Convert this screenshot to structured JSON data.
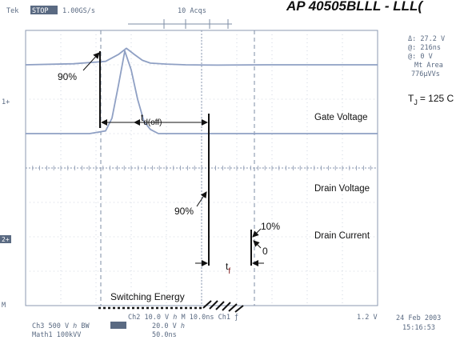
{
  "chart_data": {
    "type": "line",
    "title": "",
    "part_number_fragment": "AP 40505BLLL - LLL(",
    "temperature_label": "T",
    "temperature_subscript": "J",
    "temperature_value": "= 125 C",
    "header": {
      "brand": "Tek",
      "mode": "STOP",
      "sample_rate": "1.00GS/s",
      "acquisitions": "10 Acqs"
    },
    "cursor_readout": [
      "Δ: 27.2 V",
      "@: 216ns",
      "@: 0 V",
      "Mt Area",
      "776µVVs"
    ],
    "ch1_marker": "1+",
    "ch2_marker": "2+",
    "mth_marker": "M",
    "footer": {
      "left_lines": [
        "Ch3   500 V  ℎ  BW",
        "Math1   100kVV"
      ],
      "middle_lines": [
        "Ch2   10.0 V  ℎ  M 10.0ns  Ch1  ƒ",
        "20.0 V  ℎ",
        "50.0ns"
      ],
      "trigger": "1.2 V",
      "date": "24 Feb 2003",
      "time": "15:16:53"
    },
    "series": [
      {
        "name": "Gate Voltage",
        "x": [
          0,
          28,
          48,
          60,
          80,
          100,
          116,
          124,
          132,
          140,
          150,
          160,
          200,
          280,
          440
        ],
        "y": [
          6.43,
          6.4,
          6.22,
          6.0,
          5.84,
          5.8,
          5.72,
          5.55,
          5.62,
          5.42,
          5.36,
          5.3,
          5.26,
          5.2,
          5.18
        ]
      },
      {
        "name": "Drain Voltage",
        "x": [
          0,
          60,
          100,
          116,
          126,
          136,
          146,
          156,
          176,
          200,
          240,
          300,
          440
        ],
        "y": [
          3.0,
          3.03,
          3.1,
          3.3,
          3.48,
          3.3,
          3.13,
          3.05,
          3.02,
          3.0,
          2.99,
          3.0,
          3.0
        ]
      },
      {
        "name": "Drain Current",
        "x": [
          0,
          80,
          100,
          108,
          116,
          124,
          132,
          140,
          148,
          156,
          166,
          200,
          440
        ],
        "y": [
          1.0,
          1.0,
          1.08,
          1.45,
          2.4,
          3.4,
          2.85,
          2.0,
          1.35,
          1.12,
          1.0,
          1.0,
          1.0
        ]
      }
    ],
    "annotations": {
      "p90_gate": "90%",
      "td_label": "t",
      "td_sub": "d(off)",
      "p90_current": "90%",
      "p10": "10%",
      "zero": "0",
      "tf_label": "t",
      "tf_sub": "f",
      "energy": "Switching Energy"
    },
    "xlim": [
      0,
      440
    ],
    "ylim": [
      -4,
      4
    ],
    "grid": true
  }
}
